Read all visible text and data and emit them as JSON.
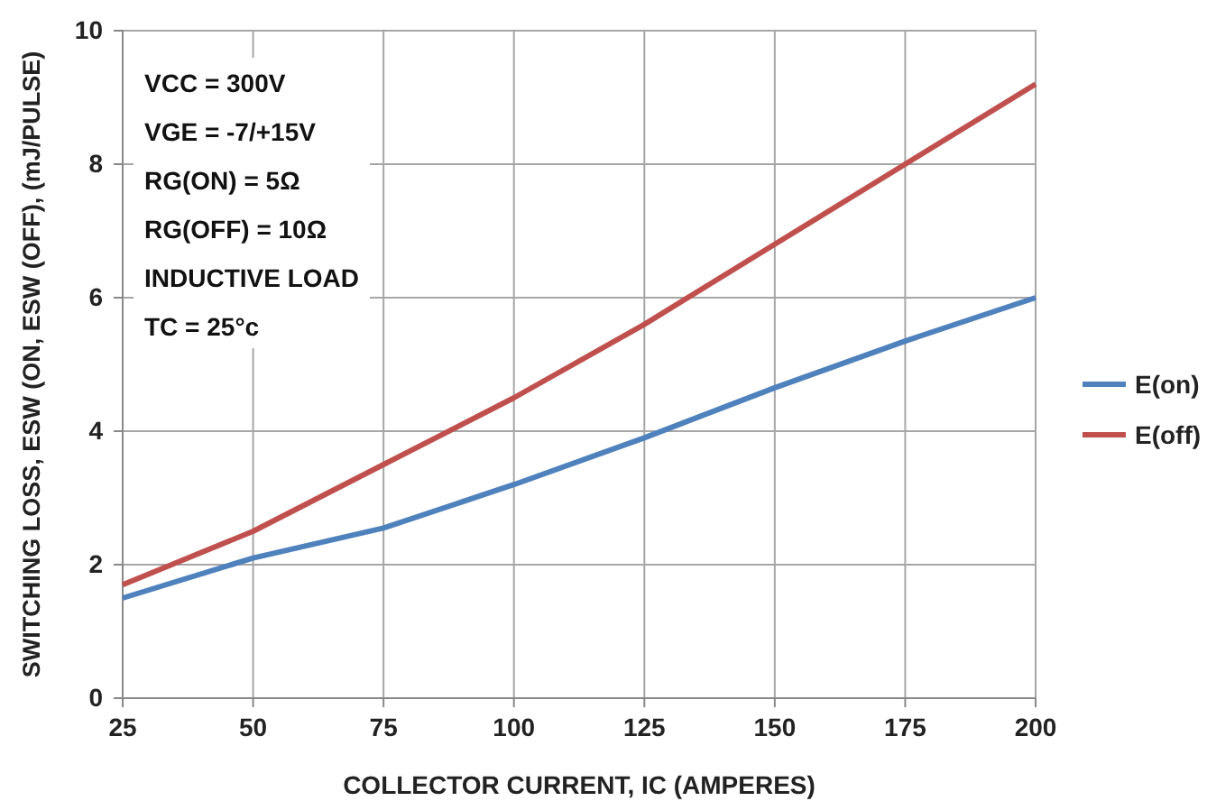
{
  "chart_data": {
    "type": "line",
    "xlabel": "COLLECTOR CURRENT, IC (AMPERES)",
    "ylabel": "SWITCHING LOSS, ESW (ON, ESW (OFF), (mJ/PULSE)",
    "x": [
      25,
      50,
      75,
      100,
      125,
      150,
      175,
      200
    ],
    "series": [
      {
        "name": "E(on)",
        "color": "#4f81bd",
        "values": [
          1.5,
          2.1,
          2.55,
          3.2,
          3.9,
          4.65,
          5.35,
          6.0
        ]
      },
      {
        "name": "E(off)",
        "color": "#c0504d",
        "values": [
          1.7,
          2.5,
          3.5,
          4.5,
          5.6,
          6.8,
          8.0,
          9.2
        ]
      }
    ],
    "xlim": [
      25,
      200
    ],
    "xticks": [
      25,
      50,
      75,
      100,
      125,
      150,
      175,
      200
    ],
    "ylim": [
      0,
      10
    ],
    "yticks": [
      0,
      2,
      4,
      6,
      8,
      10
    ],
    "grid": true,
    "legend": "right",
    "marker": "none",
    "line_style": "solid",
    "annotations": [
      "VCC = 300V",
      "VGE = -7/+15V",
      "RG(ON) = 5Ω",
      "RG(OFF) = 10Ω",
      "INDUCTIVE LOAD",
      "TC = 25°c"
    ]
  }
}
